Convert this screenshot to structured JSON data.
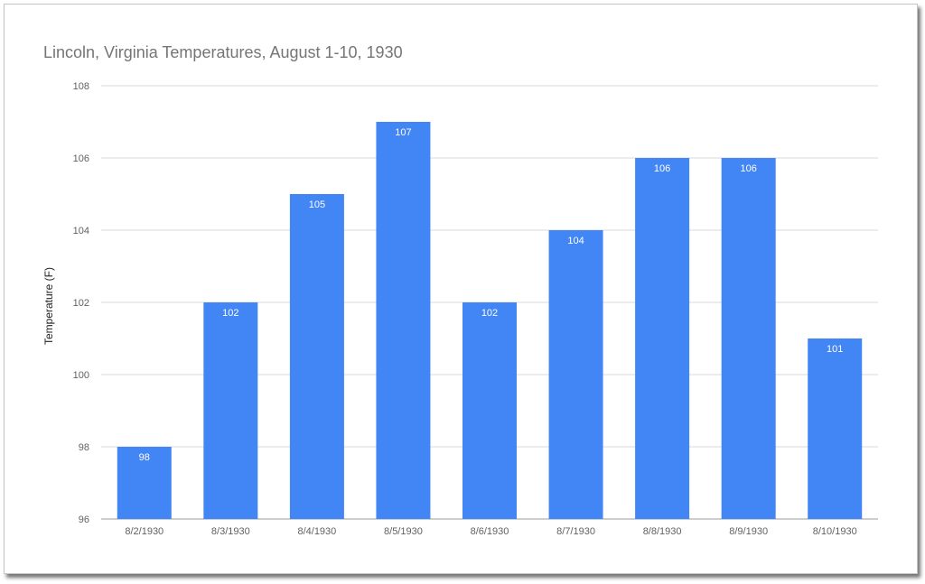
{
  "chart_data": {
    "type": "bar",
    "title": "Lincoln, Virginia Temperatures, August 1-10, 1930",
    "xlabel": "",
    "ylabel": "Temperature (F)",
    "categories": [
      "8/2/1930",
      "8/3/1930",
      "8/4/1930",
      "8/5/1930",
      "8/6/1930",
      "8/7/1930",
      "8/8/1930",
      "8/9/1930",
      "8/10/1930"
    ],
    "values": [
      98,
      102,
      105,
      107,
      102,
      104,
      106,
      106,
      101
    ],
    "data_labels": [
      "98",
      "102",
      "105",
      "107",
      "102",
      "104",
      "106",
      "106",
      "101"
    ],
    "ylim": [
      96,
      108
    ],
    "yticks": [
      "96",
      "98",
      "100",
      "102",
      "104",
      "106",
      "108"
    ],
    "grid": true,
    "legend": "none",
    "colors": {
      "bar": "#4285f4",
      "bar_label": "#ffffff",
      "grid": "#d9d9d9",
      "axis_text": "#616161",
      "title": "#757575"
    }
  }
}
